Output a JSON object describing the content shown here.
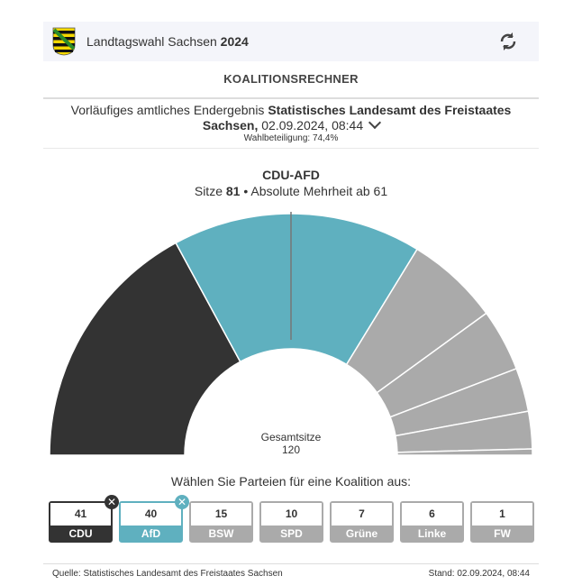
{
  "header": {
    "title_prefix": "Landtagswahl Sachsen",
    "title_year": "2024",
    "refresh_icon": "refresh-icon",
    "crest_icon": "saxony-coat-of-arms-icon"
  },
  "heading": "KOALITIONSRECHNER",
  "source": {
    "prefix": "Vorläufiges amtliches Endergebnis",
    "authority": "Statistisches Landesamt des Freistaates Sachsen,",
    "datetime": "02.09.2024, 08:44",
    "turnout": "Wahlbeteiligung: 74,4%"
  },
  "coalition": {
    "name": "CDU-AFD",
    "seats_label": "Sitze",
    "seats": "81",
    "majority": "• Absolute Mehrheit ab 61"
  },
  "total": {
    "label": "Gesamtsitze",
    "value": "120"
  },
  "prompt": "Wählen Sie Parteien für eine Koalition aus:",
  "chart_data": {
    "type": "pie",
    "variant": "semicircle-parliament",
    "total": 120,
    "majority": 61,
    "categories": [
      "CDU",
      "AfD",
      "BSW",
      "SPD",
      "Grüne",
      "Linke",
      "FW"
    ],
    "values": [
      41,
      40,
      15,
      10,
      7,
      6,
      1
    ],
    "selected": [
      true,
      true,
      false,
      false,
      false,
      false,
      false
    ],
    "colors": {
      "CDU": "#333333",
      "AfD": "#5fb0bf",
      "unselected": "#aaaaaa"
    }
  },
  "parties": [
    {
      "name": "CDU",
      "seats": "41",
      "selected": true,
      "color": "#333333"
    },
    {
      "name": "AfD",
      "seats": "40",
      "selected": true,
      "color": "#5fb0bf"
    },
    {
      "name": "BSW",
      "seats": "15",
      "selected": false
    },
    {
      "name": "SPD",
      "seats": "10",
      "selected": false
    },
    {
      "name": "Grüne",
      "seats": "7",
      "selected": false
    },
    {
      "name": "Linke",
      "seats": "6",
      "selected": false
    },
    {
      "name": "FW",
      "seats": "1",
      "selected": false
    }
  ],
  "footer": {
    "source": "Quelle: Statistisches Landesamt des Freistaates Sachsen",
    "stand": "Stand: 02.09.2024, 08:44"
  }
}
